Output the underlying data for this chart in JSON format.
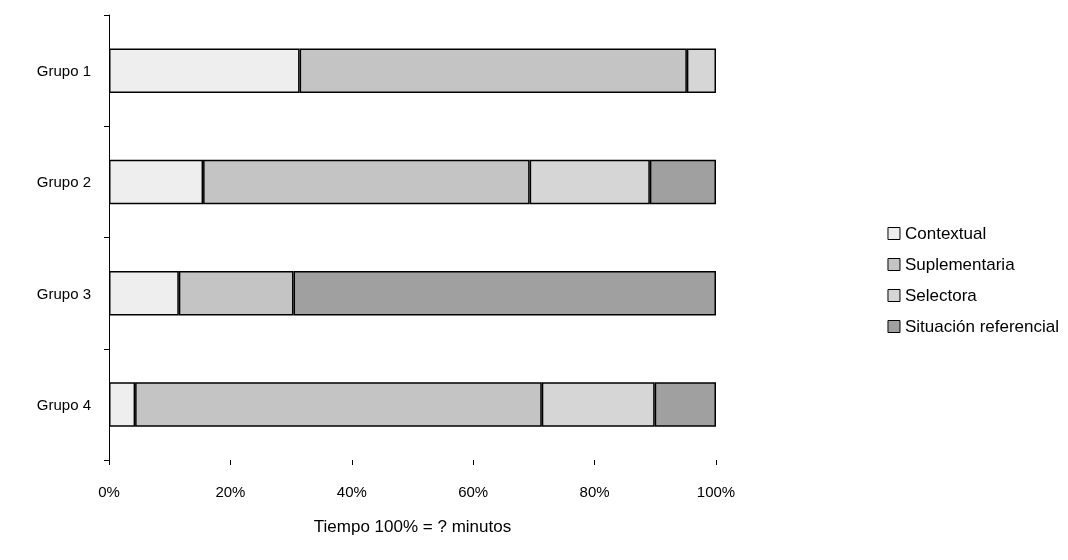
{
  "chart_data": {
    "type": "bar",
    "orientation": "horizontal",
    "stacked": true,
    "xlabel": "Tiempo 100% = ? minutos",
    "categories": [
      "Grupo 1",
      "Grupo 2",
      "Grupo 3",
      "Grupo 4"
    ],
    "series": [
      {
        "name": "Contextual",
        "color": "#eeeeee",
        "values": [
          31.4,
          15.5,
          11.5,
          4.3
        ]
      },
      {
        "name": "Suplementaria",
        "color": "#c4c4c4",
        "values": [
          63.8,
          53.8,
          18.9,
          67
        ]
      },
      {
        "name": "Selectora",
        "color": "#d6d6d6",
        "values": [
          4.8,
          19.8,
          0,
          18.6
        ]
      },
      {
        "name": "Situación referencial",
        "color": "#a0a0a0",
        "values": [
          0,
          10.9,
          69.6,
          10.1
        ]
      }
    ],
    "xlim": [
      0,
      100
    ],
    "xticks": [
      {
        "value": 0,
        "label": "0%"
      },
      {
        "value": 20,
        "label": "20%"
      },
      {
        "value": 40,
        "label": "40%"
      },
      {
        "value": 60,
        "label": "60%"
      },
      {
        "value": 80,
        "label": "80%"
      },
      {
        "value": 100,
        "label": "100%"
      }
    ],
    "grid": false,
    "legend": "right"
  }
}
